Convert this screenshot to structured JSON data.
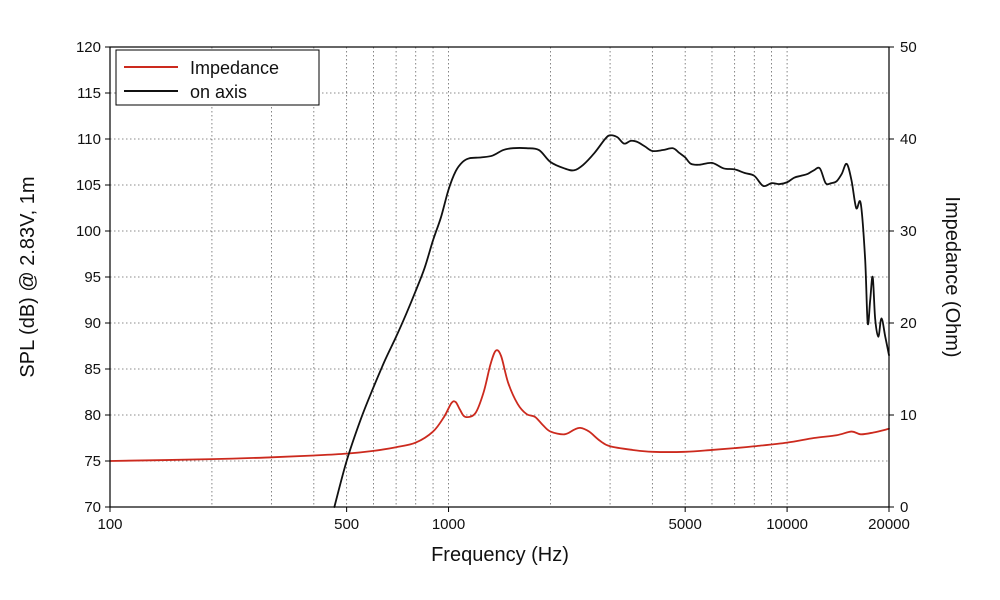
{
  "chart_data": {
    "type": "line",
    "xlabel": "Frequency (Hz)",
    "ylabel_left": "SPL (dB) @ 2.83V, 1m",
    "ylabel_right": "Impedance (Ohm)",
    "x_scale": "log",
    "xlim": [
      100,
      20000
    ],
    "ylim_left": [
      70,
      120
    ],
    "ylim_right": [
      0,
      50
    ],
    "x_ticks": [
      "100",
      "500",
      "1000",
      "5000",
      "10000",
      "20000"
    ],
    "y_ticks_left": [
      "70",
      "75",
      "80",
      "85",
      "90",
      "95",
      "100",
      "105",
      "110",
      "115",
      "120"
    ],
    "y_ticks_right": [
      "0",
      "10",
      "20",
      "30",
      "40",
      "50"
    ],
    "grid": true,
    "legend_position": "top-left",
    "series": [
      {
        "name": "Impedance",
        "axis": "right",
        "color": "#cc2a1e",
        "points": [
          [
            100,
            5.0
          ],
          [
            200,
            5.2
          ],
          [
            300,
            5.4
          ],
          [
            400,
            5.6
          ],
          [
            500,
            5.8
          ],
          [
            600,
            6.1
          ],
          [
            700,
            6.5
          ],
          [
            800,
            7.0
          ],
          [
            900,
            8.2
          ],
          [
            970,
            9.8
          ],
          [
            1020,
            11.3
          ],
          [
            1050,
            11.4
          ],
          [
            1080,
            10.6
          ],
          [
            1120,
            9.8
          ],
          [
            1200,
            10.2
          ],
          [
            1270,
            12.5
          ],
          [
            1330,
            15.5
          ],
          [
            1380,
            17.0
          ],
          [
            1430,
            16.4
          ],
          [
            1500,
            13.5
          ],
          [
            1600,
            11.2
          ],
          [
            1700,
            10.1
          ],
          [
            1800,
            9.8
          ],
          [
            1900,
            8.9
          ],
          [
            2000,
            8.2
          ],
          [
            2200,
            7.9
          ],
          [
            2350,
            8.4
          ],
          [
            2450,
            8.6
          ],
          [
            2600,
            8.2
          ],
          [
            2800,
            7.2
          ],
          [
            3000,
            6.6
          ],
          [
            3500,
            6.2
          ],
          [
            4000,
            6.0
          ],
          [
            5000,
            6.0
          ],
          [
            6000,
            6.2
          ],
          [
            7000,
            6.4
          ],
          [
            8000,
            6.6
          ],
          [
            10000,
            7.0
          ],
          [
            12000,
            7.5
          ],
          [
            14000,
            7.8
          ],
          [
            15500,
            8.2
          ],
          [
            16500,
            7.9
          ],
          [
            18000,
            8.1
          ],
          [
            20000,
            8.5
          ]
        ]
      },
      {
        "name": "on axis",
        "color": "#111111",
        "axis": "left",
        "points": [
          [
            460,
            70.0
          ],
          [
            500,
            75.0
          ],
          [
            550,
            79.5
          ],
          [
            600,
            83.0
          ],
          [
            650,
            86.0
          ],
          [
            700,
            88.5
          ],
          [
            750,
            91.0
          ],
          [
            800,
            93.5
          ],
          [
            850,
            96.0
          ],
          [
            900,
            99.0
          ],
          [
            950,
            101.5
          ],
          [
            1000,
            104.5
          ],
          [
            1050,
            106.5
          ],
          [
            1100,
            107.5
          ],
          [
            1150,
            107.9
          ],
          [
            1250,
            108.0
          ],
          [
            1350,
            108.2
          ],
          [
            1450,
            108.8
          ],
          [
            1550,
            109.0
          ],
          [
            1700,
            109.0
          ],
          [
            1850,
            108.8
          ],
          [
            2000,
            107.5
          ],
          [
            2200,
            106.8
          ],
          [
            2350,
            106.6
          ],
          [
            2500,
            107.2
          ],
          [
            2700,
            108.5
          ],
          [
            2900,
            110.0
          ],
          [
            3000,
            110.4
          ],
          [
            3150,
            110.2
          ],
          [
            3300,
            109.5
          ],
          [
            3450,
            109.8
          ],
          [
            3600,
            109.7
          ],
          [
            3800,
            109.2
          ],
          [
            4000,
            108.7
          ],
          [
            4300,
            108.8
          ],
          [
            4600,
            109.0
          ],
          [
            4800,
            108.5
          ],
          [
            5000,
            108.0
          ],
          [
            5200,
            107.3
          ],
          [
            5500,
            107.2
          ],
          [
            6000,
            107.4
          ],
          [
            6500,
            106.8
          ],
          [
            7000,
            106.7
          ],
          [
            7500,
            106.3
          ],
          [
            8000,
            106.0
          ],
          [
            8500,
            104.9
          ],
          [
            9000,
            105.2
          ],
          [
            9500,
            105.1
          ],
          [
            10000,
            105.3
          ],
          [
            10500,
            105.8
          ],
          [
            11000,
            106.0
          ],
          [
            11500,
            106.2
          ],
          [
            12000,
            106.6
          ],
          [
            12500,
            106.8
          ],
          [
            13000,
            105.2
          ],
          [
            13500,
            105.2
          ],
          [
            14000,
            105.4
          ],
          [
            14500,
            106.2
          ],
          [
            15000,
            107.3
          ],
          [
            15500,
            105.5
          ],
          [
            16000,
            102.5
          ],
          [
            16500,
            103.0
          ],
          [
            17000,
            97.0
          ],
          [
            17300,
            90.0
          ],
          [
            17600,
            92.5
          ],
          [
            17900,
            95.0
          ],
          [
            18200,
            90.5
          ],
          [
            18600,
            88.5
          ],
          [
            19000,
            90.5
          ],
          [
            19500,
            88.5
          ],
          [
            20000,
            86.5
          ]
        ]
      }
    ]
  }
}
